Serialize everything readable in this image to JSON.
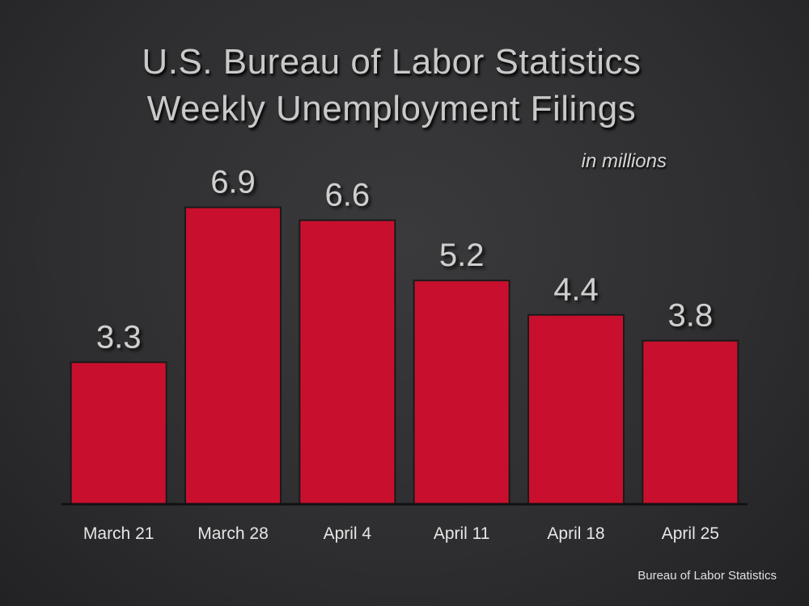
{
  "header": {
    "title_line1": "U.S. Bureau of Labor Statistics",
    "title_line2": "Weekly Unemployment Filings",
    "unit": "in millions"
  },
  "footer": {
    "source": "Bureau of Labor Statistics"
  },
  "colors": {
    "bar": "#c8102e",
    "axis": "#111111"
  },
  "chart_data": {
    "type": "bar",
    "title": "U.S. Bureau of Labor Statistics Weekly Unemployment Filings",
    "subtitle": "in millions",
    "categories": [
      "March 21",
      "March 28",
      "April 4",
      "April 11",
      "April 18",
      "April 25"
    ],
    "values": [
      3.3,
      6.9,
      6.6,
      5.2,
      4.4,
      3.8
    ],
    "value_labels": [
      "3.3",
      "6.9",
      "6.6",
      "5.2",
      "4.4",
      "3.8"
    ],
    "xlabel": "",
    "ylabel": "",
    "ylim": [
      0,
      7.7
    ],
    "grid": false,
    "legend": "none"
  }
}
